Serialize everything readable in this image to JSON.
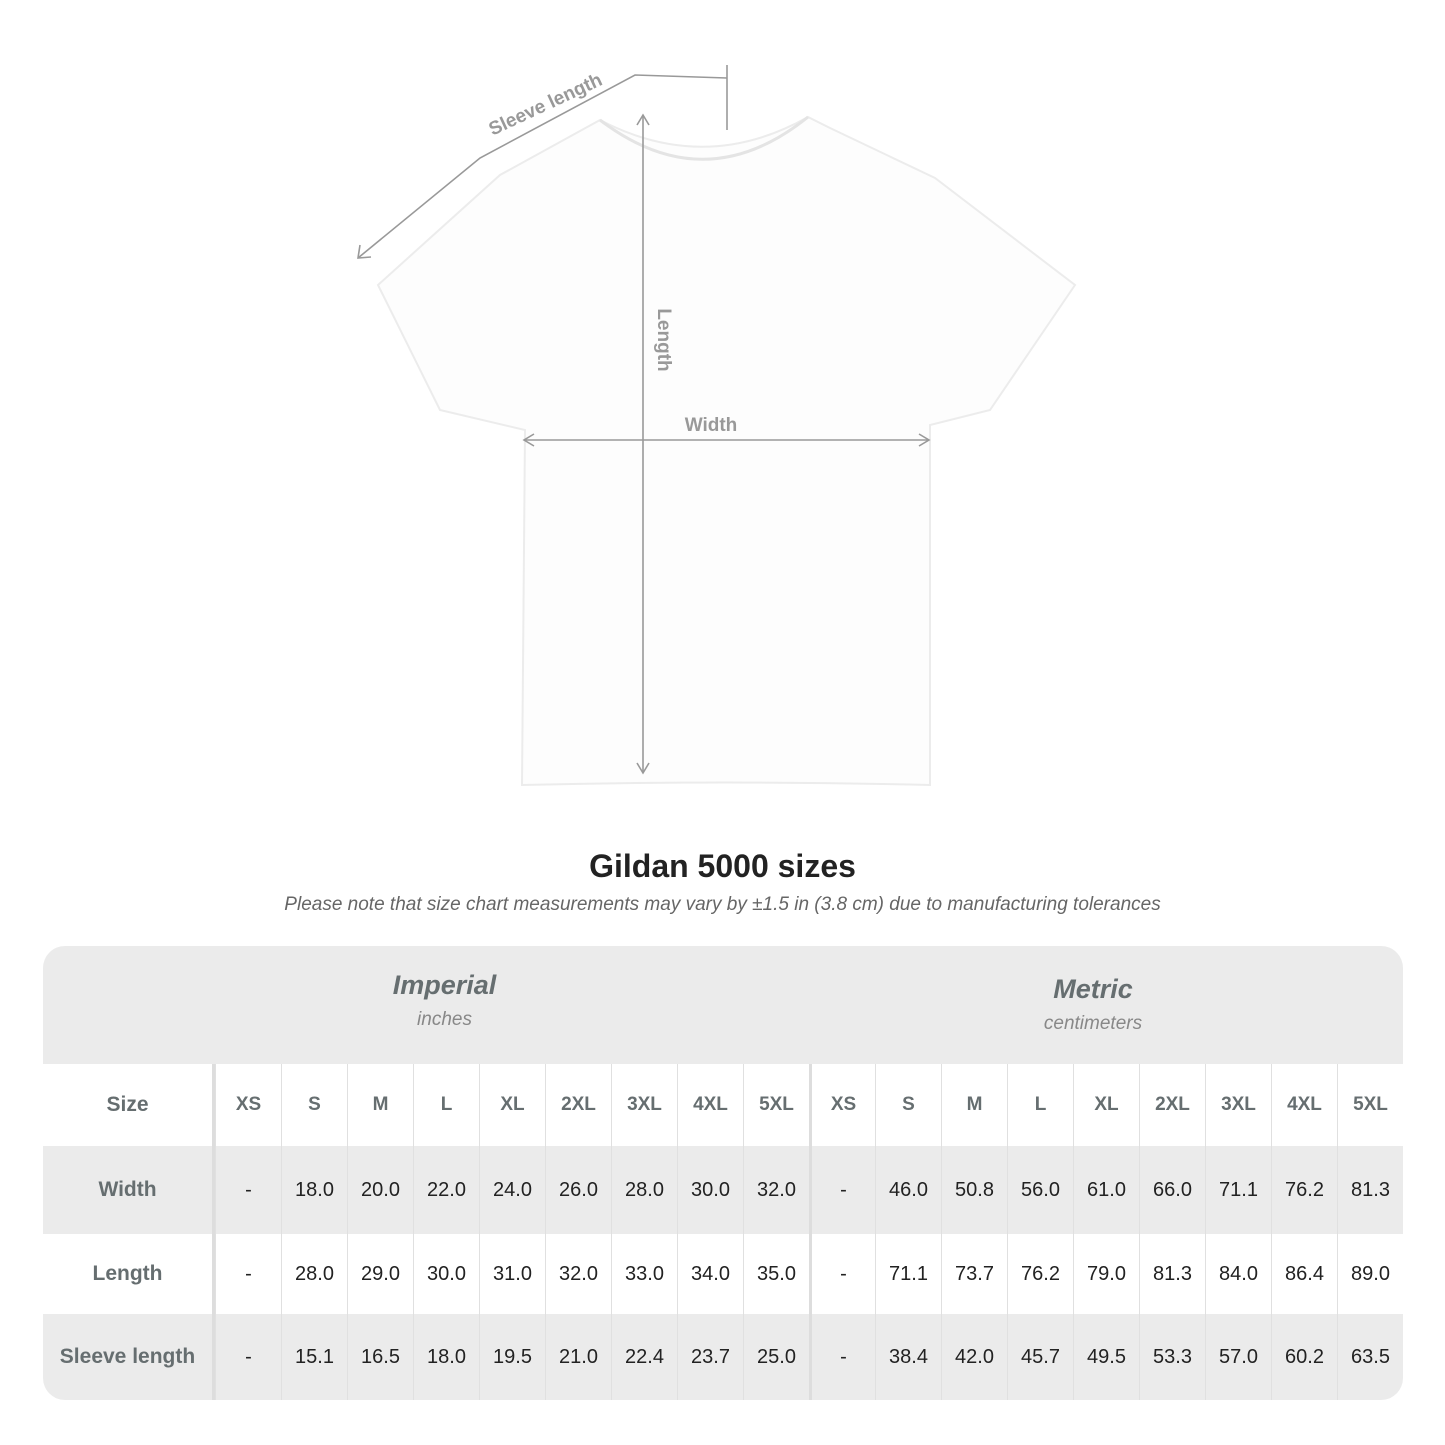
{
  "diagram": {
    "labels": {
      "sleeve": "Sleeve length",
      "length": "Length",
      "width": "Width"
    },
    "line_color": "#999999"
  },
  "title": "Gildan 5000 sizes",
  "note": "Please note that size chart measurements may vary by ±1.5 in (3.8 cm) due to manufacturing tolerances",
  "table": {
    "imperial": {
      "name": "Imperial",
      "unit": "inches"
    },
    "metric": {
      "name": "Metric",
      "unit": "centimeters"
    },
    "size_label": "Size",
    "sizes": [
      "XS",
      "S",
      "M",
      "L",
      "XL",
      "2XL",
      "3XL",
      "4XL",
      "5XL"
    ],
    "rows": [
      {
        "label": "Width",
        "imperial": [
          "-",
          "18.0",
          "20.0",
          "22.0",
          "24.0",
          "26.0",
          "28.0",
          "30.0",
          "32.0"
        ],
        "metric": [
          "-",
          "46.0",
          "50.8",
          "56.0",
          "61.0",
          "66.0",
          "71.1",
          "76.2",
          "81.3"
        ]
      },
      {
        "label": "Length",
        "imperial": [
          "-",
          "28.0",
          "29.0",
          "30.0",
          "31.0",
          "32.0",
          "33.0",
          "34.0",
          "35.0"
        ],
        "metric": [
          "-",
          "71.1",
          "73.7",
          "76.2",
          "79.0",
          "81.3",
          "84.0",
          "86.4",
          "89.0"
        ]
      },
      {
        "label": "Sleeve length",
        "imperial": [
          "-",
          "15.1",
          "16.5",
          "18.0",
          "19.5",
          "21.0",
          "22.4",
          "23.7",
          "25.0"
        ],
        "metric": [
          "-",
          "38.4",
          "42.0",
          "45.7",
          "49.5",
          "53.3",
          "57.0",
          "60.2",
          "63.5"
        ]
      }
    ]
  }
}
